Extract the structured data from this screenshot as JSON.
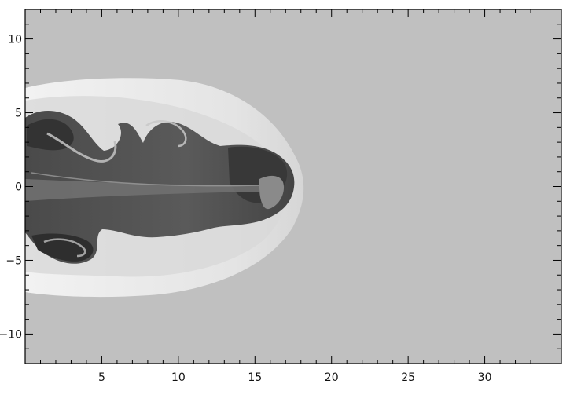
{
  "chart_data": {
    "type": "heatmap",
    "title": "",
    "xlabel": "",
    "ylabel": "",
    "xlim": [
      0,
      35
    ],
    "ylim": [
      -12,
      12
    ],
    "x_ticks": [
      5,
      10,
      15,
      20,
      25,
      30
    ],
    "y_ticks": [
      10,
      5,
      0,
      -5,
      -10
    ],
    "x_tick_labels": [
      "5",
      "10",
      "15",
      "20",
      "25",
      "30"
    ],
    "y_tick_labels": [
      "10",
      "5",
      "0",
      "−5",
      "−10"
    ],
    "colormap": "grayscale",
    "colors": {
      "background": "#c0c0c0",
      "shell": "#e6e6e6",
      "cocoon": "#7a7a7a",
      "cocoon_dark": "#3a3a3a",
      "jet_core": "#666666",
      "frame": "#000000"
    }
  }
}
